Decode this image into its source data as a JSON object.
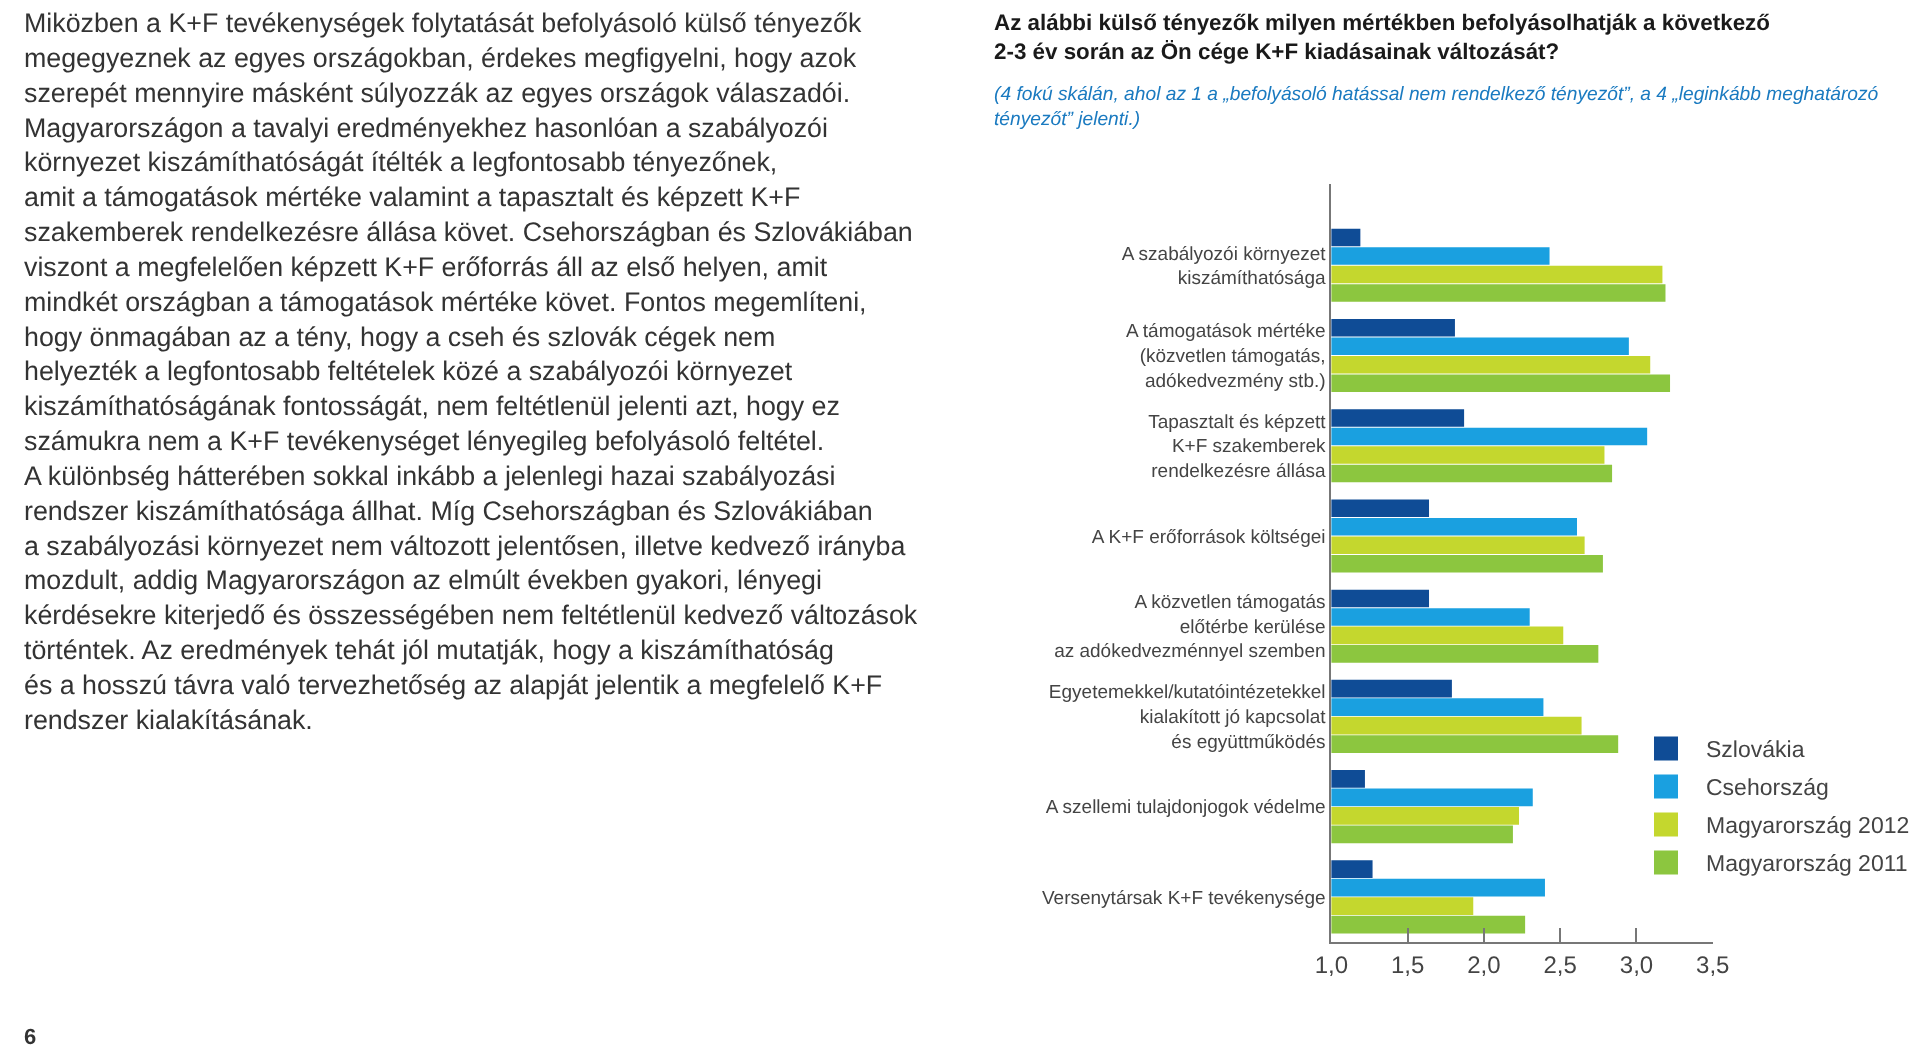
{
  "chart_data": {
    "type": "bar",
    "orientation": "horizontal",
    "title": "Az alábbi külső tényezők milyen mértékben befolyásolhatják a következő\n2-3 év során az Ön cége K+F kiadásainak változását?",
    "subtitle": "(4 fokú skálán, ahol az 1 a „befolyásoló hatással nem rendelkező tényezőt”, a 4 „leginkább meghatározó\ntényezőt” jelenti.)",
    "categories": [
      "A szabályozói környezet\nkiszámíthatósága",
      "A támogatások mértéke\n(közvetlen támogatás,\nadókedvezmény stb.)",
      "Tapasztalt és képzett\nK+F szakemberek\nrendelkezésre állása",
      "A K+F erőforrások költségei",
      "A közvetlen támogatás\nelőtérbe kerülése\naz adókedvezménnyel szemben",
      "Egyetemekkel/kutatóintézetekkel\nkialakított jó kapcsolat\nés együttműködés",
      "A szellemi tulajdonjogok védelme",
      "Versenytársak K+F tevékenysége"
    ],
    "series": [
      {
        "name": "Szlovákia",
        "color": "#0f4c96",
        "values": [
          1.19,
          1.81,
          1.87,
          1.64,
          1.64,
          1.79,
          1.22,
          1.27
        ]
      },
      {
        "name": "Csehország",
        "color": "#1aa0e0",
        "values": [
          2.43,
          2.95,
          3.07,
          2.61,
          2.3,
          2.39,
          2.32,
          2.4
        ]
      },
      {
        "name": "Magyarország 2012",
        "color": "#c4d72e",
        "values": [
          3.17,
          3.09,
          2.79,
          2.66,
          2.52,
          2.64,
          2.23,
          1.93
        ]
      },
      {
        "name": "Magyarország 2011",
        "color": "#8cc63f",
        "values": [
          3.19,
          3.22,
          2.84,
          2.78,
          2.75,
          2.88,
          2.19,
          2.27
        ]
      }
    ],
    "xlim": [
      1,
      3.5
    ],
    "xticks": [
      {
        "value": 1,
        "label": "1,0"
      },
      {
        "value": 1.5,
        "label": "1,5"
      },
      {
        "value": 2,
        "label": "2,0"
      },
      {
        "value": 2.5,
        "label": "2,5"
      },
      {
        "value": 3,
        "label": "3,0"
      },
      {
        "value": 3.5,
        "label": "3,5"
      }
    ],
    "legend": "bottom right",
    "annotations": [
      "Miközben a K+F tevékenységek folytatását befolyásoló külső tényezők\nmegegyeznek az egyes országokban, érdekes megfigyelni, hogy azok\nszerepét mennyire másként súlyozzák az egyes országok válaszadói.\nMagyarországon a tavalyi eredményekhez hasonlóan a szabályozói\nkörnyezet kiszámíthatóságát ítélték a legfontosabb tényezőnek,\namit a támogatások mértéke valamint a tapasztalt és képzett K+F\nszakemberek rendelkezésre állása követ. Csehországban és Szlovákiában\nviszont a megfelelően képzett K+F erőforrás áll az első helyen, amit\nmindkét országban a támogatások mértéke követ. Fontos megemlíteni,\nhogy önmagában az a tény, hogy a cseh és szlovák cégek nem\nhelyezték a legfontosabb feltételek közé a szabályozói környezet\nkiszámíthatóságának fontosságát, nem feltétlenül jelenti azt, hogy ez\nszámukra nem a K+F tevékenységet lényegileg befolyásoló feltétel.\nA különbség hátterében sokkal inkább a jelenlegi hazai szabályozási\nrendszer kiszámíthatósága állhat. Míg Csehországban és Szlovákiában\na szabályozási környezet nem változott jelentősen, illetve kedvező irányba\nmozdult, addig Magyarországon az elmúlt években gyakori, lényegi\nkérdésekre kiterjedő és összességében nem feltétlenül kedvező változások\ntörténtek. Az eredmények tehát jól mutatják, hogy a kiszámíthatóság\nés a hosszú távra való tervezhetőség az alapját jelentik a megfelelő K+F\nrendszer kialakításának.",
      "6"
    ]
  }
}
